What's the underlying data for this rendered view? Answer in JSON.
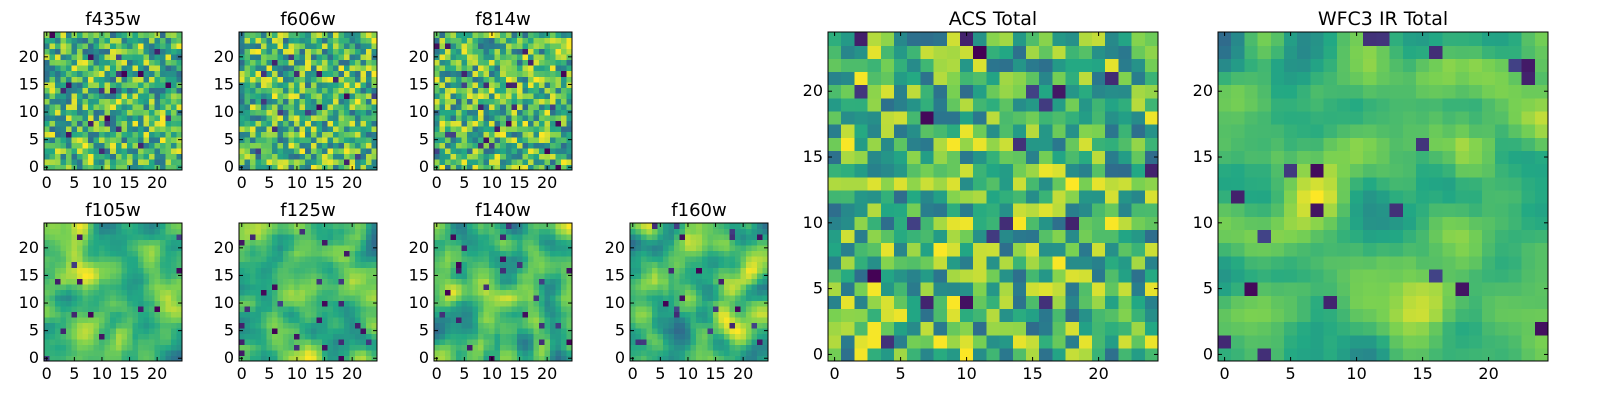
{
  "figure": {
    "background": "#ffffff"
  },
  "chart_data": [
    {
      "id": "f435w",
      "type": "heatmap",
      "title": "f435w",
      "grid_size": 25,
      "xlim": [
        -0.5,
        24.5
      ],
      "ylim": [
        -0.5,
        24.5
      ],
      "xticks": [
        0,
        5,
        10,
        15,
        20
      ],
      "yticks": [
        0,
        5,
        10,
        15,
        20
      ],
      "pattern": "noise",
      "seed": 11
    },
    {
      "id": "f606w",
      "type": "heatmap",
      "title": "f606w",
      "grid_size": 25,
      "xlim": [
        -0.5,
        24.5
      ],
      "ylim": [
        -0.5,
        24.5
      ],
      "xticks": [
        0,
        5,
        10,
        15,
        20
      ],
      "yticks": [
        0,
        5,
        10,
        15,
        20
      ],
      "pattern": "noise",
      "seed": 23
    },
    {
      "id": "f814w",
      "type": "heatmap",
      "title": "f814w",
      "grid_size": 25,
      "xlim": [
        -0.5,
        24.5
      ],
      "ylim": [
        -0.5,
        24.5
      ],
      "xticks": [
        0,
        5,
        10,
        15,
        20
      ],
      "yticks": [
        0,
        5,
        10,
        15,
        20
      ],
      "pattern": "noise",
      "seed": 37
    },
    {
      "id": "f105w",
      "type": "heatmap",
      "title": "f105w",
      "grid_size": 25,
      "xlim": [
        -0.5,
        24.5
      ],
      "ylim": [
        -0.5,
        24.5
      ],
      "xticks": [
        0,
        5,
        10,
        15,
        20
      ],
      "yticks": [
        0,
        5,
        10,
        15,
        20
      ],
      "pattern": "smooth",
      "seed": 41
    },
    {
      "id": "f125w",
      "type": "heatmap",
      "title": "f125w",
      "grid_size": 25,
      "xlim": [
        -0.5,
        24.5
      ],
      "ylim": [
        -0.5,
        24.5
      ],
      "xticks": [
        0,
        5,
        10,
        15,
        20
      ],
      "yticks": [
        0,
        5,
        10,
        15,
        20
      ],
      "pattern": "smooth",
      "seed": 53
    },
    {
      "id": "f140w",
      "type": "heatmap",
      "title": "f140w",
      "grid_size": 25,
      "xlim": [
        -0.5,
        24.5
      ],
      "ylim": [
        -0.5,
        24.5
      ],
      "xticks": [
        0,
        5,
        10,
        15,
        20
      ],
      "yticks": [
        0,
        5,
        10,
        15,
        20
      ],
      "pattern": "smooth",
      "seed": 67
    },
    {
      "id": "f160w",
      "type": "heatmap",
      "title": "f160w",
      "grid_size": 25,
      "xlim": [
        -0.5,
        24.5
      ],
      "ylim": [
        -0.5,
        24.5
      ],
      "xticks": [
        0,
        5,
        10,
        15,
        20
      ],
      "yticks": [
        0,
        5,
        10,
        15,
        20
      ],
      "pattern": "smooth",
      "seed": 79
    },
    {
      "id": "acs-total",
      "type": "heatmap",
      "title": "ACS Total",
      "grid_size": 25,
      "xlim": [
        -0.5,
        24.5
      ],
      "ylim": [
        -0.5,
        24.5
      ],
      "xticks": [
        0,
        5,
        10,
        15,
        20
      ],
      "yticks": [
        0,
        5,
        10,
        15,
        20
      ],
      "pattern": "noise",
      "seed": 91
    },
    {
      "id": "wfc3-ir-total",
      "type": "heatmap",
      "title": "WFC3 IR Total",
      "grid_size": 25,
      "xlim": [
        -0.5,
        24.5
      ],
      "ylim": [
        -0.5,
        24.5
      ],
      "xticks": [
        0,
        5,
        10,
        15,
        20
      ],
      "yticks": [
        0,
        5,
        10,
        15,
        20
      ],
      "pattern": "smooth",
      "seed": 103
    }
  ],
  "colormap": {
    "name": "viridis",
    "stops": [
      "#440154",
      "#414487",
      "#2a788e",
      "#22a884",
      "#7ad151",
      "#fde725"
    ]
  }
}
